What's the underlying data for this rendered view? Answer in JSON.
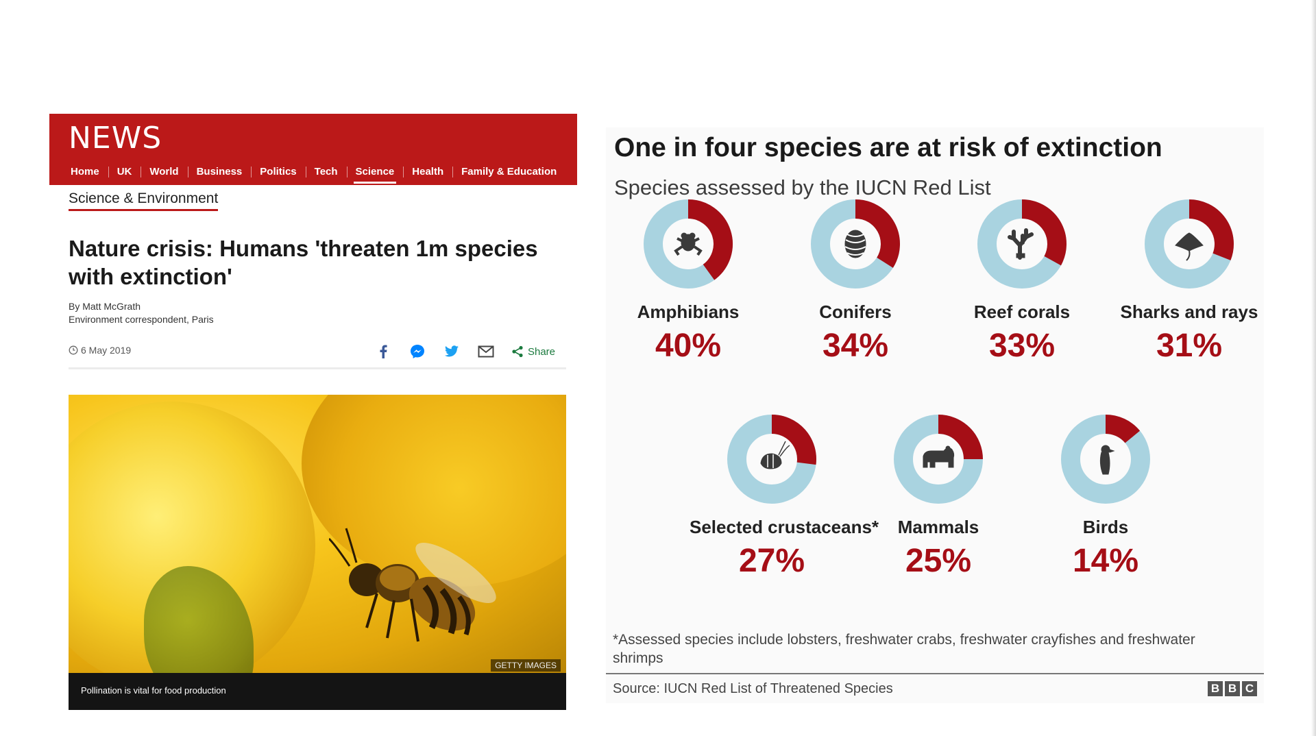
{
  "article": {
    "brand": "NEWS",
    "nav": [
      {
        "label": "Home"
      },
      {
        "label": "UK"
      },
      {
        "label": "World"
      },
      {
        "label": "Business"
      },
      {
        "label": "Politics"
      },
      {
        "label": "Tech"
      },
      {
        "label": "Science",
        "active": true
      },
      {
        "label": "Health"
      },
      {
        "label": "Family & Education"
      }
    ],
    "section": "Science & Environment",
    "headline": "Nature crisis: Humans 'threaten 1m species with extinction'",
    "author": "By Matt McGrath",
    "author_role": "Environment correspondent, Paris",
    "date": "6 May 2019",
    "share_label": "Share",
    "share_icons": [
      "facebook-icon",
      "messenger-icon",
      "twitter-icon",
      "email-icon",
      "share-icon"
    ],
    "photo_credit": "GETTY IMAGES",
    "caption": "Pollination is vital for food production"
  },
  "infographic": {
    "title": "One in four species are at risk of extinction",
    "subtitle": "Species assessed by the IUCN Red List",
    "colors": {
      "at_risk": "#a50e16",
      "remaining": "#a9d3e0",
      "icon": "#3a3a3a"
    },
    "footnote": "*Assessed species include lobsters, freshwater crabs, freshwater crayfishes and freshwater shrimps",
    "source": "Source: IUCN Red List of Threatened Species",
    "logo_letters": [
      "B",
      "B",
      "C"
    ]
  },
  "chart_data": {
    "type": "pie",
    "title": "One in four species are at risk of extinction",
    "subtitle": "Species assessed by the IUCN Red List",
    "categories": [
      "Amphibians",
      "Conifers",
      "Reef corals",
      "Sharks and rays",
      "Selected crustaceans*",
      "Mammals",
      "Birds"
    ],
    "values": [
      40,
      34,
      33,
      31,
      27,
      25,
      14
    ],
    "value_labels": [
      "40%",
      "34%",
      "33%",
      "31%",
      "27%",
      "25%",
      "14%"
    ],
    "icons": [
      "frog-icon",
      "pine-cone-icon",
      "coral-icon",
      "ray-icon",
      "shrimp-icon",
      "bear-icon",
      "bird-icon"
    ],
    "unit": "%"
  }
}
